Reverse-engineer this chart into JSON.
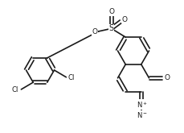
{
  "bg": "#ffffff",
  "lc": "#1a1a1a",
  "lw": 1.2,
  "figsize": [
    2.3,
    1.65
  ],
  "dpi": 100,
  "xlim": [
    0,
    2.3
  ],
  "ylim": [
    0,
    1.65
  ],
  "bl": 0.195
}
